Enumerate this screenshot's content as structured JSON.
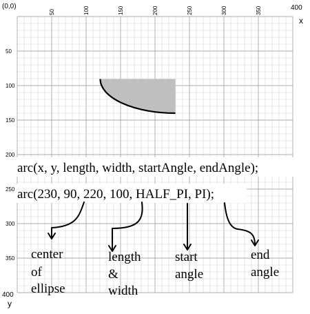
{
  "axes": {
    "origin_label": "(0,0)",
    "x_end_label": "400",
    "x_name": "x",
    "y_end_label": "400",
    "y_name": "y",
    "x_ticks": [
      "50",
      "100",
      "150",
      "200",
      "250",
      "300",
      "350"
    ],
    "y_ticks": [
      "50",
      "100",
      "150",
      "200",
      "250",
      "300",
      "350"
    ],
    "range": [
      0,
      400
    ],
    "grid_step": 10
  },
  "code": {
    "signature": "arc(x, y, length, width, startAngle, endAngle);",
    "example": "arc(230, 90, 220, 100, HALF_PI, PI);"
  },
  "arc_example": {
    "x": 230,
    "y": 90,
    "length": 220,
    "width": 100,
    "start_angle": "HALF_PI",
    "end_angle": "PI",
    "fill_color": "#bfbfbf",
    "stroke_color": "#000000"
  },
  "annotations": {
    "center": [
      "center",
      "of",
      "ellipse"
    ],
    "size": [
      "length",
      "&",
      "width"
    ],
    "start": [
      "start",
      "angle"
    ],
    "end": [
      "end",
      "angle"
    ]
  },
  "colors": {
    "grid_minor": "#d4d4d4",
    "grid_major": "#a8a8a8",
    "background": "#ffffff"
  }
}
